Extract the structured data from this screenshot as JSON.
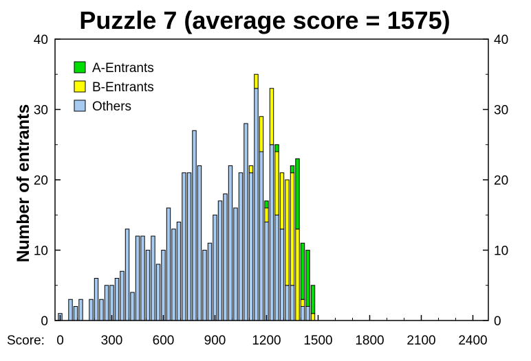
{
  "chart_data": {
    "type": "bar",
    "stacked": true,
    "title": "Puzzle 7 (average score = 1575)",
    "ylabel": "Number of entrants",
    "xlabel": "Score:",
    "x_start": 0,
    "bin_width": 30,
    "xlim": [
      -30,
      2490
    ],
    "ylim": [
      0,
      40
    ],
    "x_ticks": [
      0,
      300,
      600,
      900,
      1200,
      1500,
      1800,
      2100,
      2400
    ],
    "y_ticks": [
      0,
      10,
      20,
      30,
      40
    ],
    "legend_position": "top-left",
    "grid": false,
    "series": [
      {
        "name": "Others",
        "color": "#a6caf0",
        "values": [
          1,
          0,
          3,
          2,
          3,
          0,
          3,
          6,
          3,
          5,
          5,
          6,
          7,
          13,
          4,
          12,
          12,
          10,
          12,
          8,
          10,
          16,
          13,
          14,
          21,
          21,
          27,
          22,
          10,
          11,
          15,
          17,
          18,
          22,
          16,
          21,
          28,
          21,
          33,
          24,
          14,
          25,
          15,
          13,
          5,
          5,
          0,
          2,
          2,
          0
        ]
      },
      {
        "name": "B-Entrants",
        "color": "#ffff00",
        "values": [
          0,
          0,
          0,
          0,
          0,
          0,
          0,
          0,
          0,
          0,
          0,
          0,
          0,
          0,
          0,
          0,
          0,
          0,
          0,
          0,
          0,
          0,
          0,
          0,
          0,
          0,
          0,
          0,
          0,
          0,
          0,
          0,
          0,
          0,
          0,
          0,
          0,
          1,
          2,
          5,
          2,
          8,
          9,
          8,
          15,
          16,
          13,
          1,
          0,
          1
        ]
      },
      {
        "name": "A-Entrants",
        "color": "#00dd00",
        "values": [
          0,
          0,
          0,
          0,
          0,
          0,
          0,
          0,
          0,
          0,
          0,
          0,
          0,
          0,
          0,
          0,
          0,
          0,
          0,
          0,
          0,
          0,
          0,
          0,
          0,
          0,
          0,
          0,
          0,
          0,
          0,
          0,
          0,
          0,
          0,
          0,
          0,
          0,
          0,
          0,
          1,
          0,
          1,
          0,
          0,
          1,
          10,
          8,
          8,
          4
        ]
      }
    ],
    "legend": [
      "A-Entrants",
      "B-Entrants",
      "Others"
    ]
  }
}
